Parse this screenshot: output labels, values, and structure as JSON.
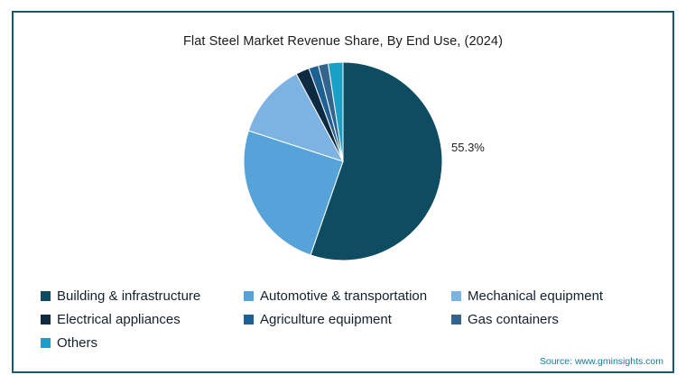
{
  "title": "Flat Steel Market Revenue Share, By End Use, (2024)",
  "source": "Source: www.gminsights.com",
  "chart_data": {
    "type": "pie",
    "title": "Flat Steel Market Revenue Share, By End Use, (2024)",
    "start_angle_deg_from_top": 0,
    "direction": "clockwise",
    "legend_position": "bottom",
    "data_label": {
      "text": "55.3%",
      "slice": "Building & infrastructure"
    },
    "slices": [
      {
        "label": "Building & infrastructure",
        "value": 55.3,
        "color": "#0e4d61"
      },
      {
        "label": "Automotive & transportation",
        "value": 24.7,
        "color": "#56a3da"
      },
      {
        "label": "Mechanical equipment",
        "value": 12.2,
        "color": "#7cb3e3"
      },
      {
        "label": "Electrical appliances",
        "value": 2.2,
        "color": "#0c2b42"
      },
      {
        "label": "Agriculture equipment",
        "value": 1.6,
        "color": "#1d6094"
      },
      {
        "label": "Gas containers",
        "value": 1.6,
        "color": "#33648e"
      },
      {
        "label": "Others",
        "value": 2.4,
        "color": "#18a0c8"
      }
    ]
  }
}
